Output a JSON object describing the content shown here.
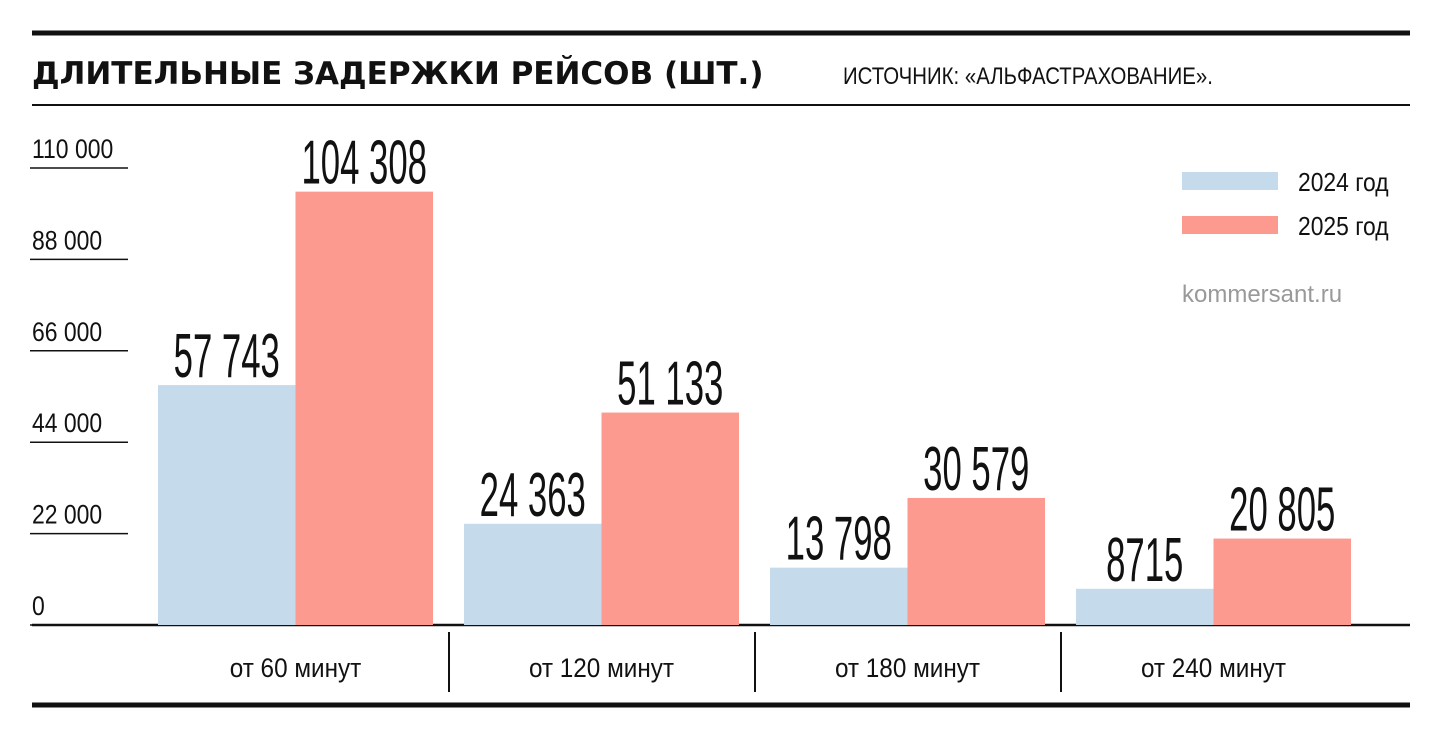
{
  "chart_data": {
    "type": "bar",
    "title": "ДЛИТЕЛЬНЫЕ ЗАДЕРЖКИ РЕЙСОВ (ШТ.)",
    "source": "ИСТОЧНИК: «АЛЬФАСТРАХОВАНИЕ».",
    "credit": "kommersant.ru",
    "categories": [
      "от 60 минут",
      "от 120 минут",
      "от 180 минут",
      "от 240 минут"
    ],
    "series": [
      {
        "name": "2024 год",
        "color": "#c5dbeb",
        "values": [
          57743,
          24363,
          13798,
          8715
        ],
        "value_labels": [
          "57 743",
          "24 363",
          "13 798",
          "8715"
        ]
      },
      {
        "name": "2025 год",
        "color": "#fc9a90",
        "values": [
          104308,
          51133,
          30579,
          20805
        ],
        "value_labels": [
          "104 308",
          "51 133",
          "30 579",
          "20 805"
        ]
      }
    ],
    "ylim": [
      0,
      110000
    ],
    "yticks": [
      0,
      {
        "value": 22000,
        "label": "22 000"
      },
      {
        "value": 44000,
        "label": "44 000"
      },
      {
        "value": 66000,
        "label": "66 000"
      },
      {
        "value": 88000,
        "label": "88 000"
      },
      {
        "value": 110000,
        "label": "110 000"
      }
    ],
    "legend": "top-right"
  }
}
